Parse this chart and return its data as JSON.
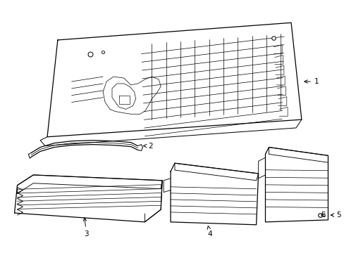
{
  "background_color": "#ffffff",
  "line_color": "#000000",
  "lw": 0.9,
  "fig_width": 4.89,
  "fig_height": 3.6,
  "dpi": 100
}
